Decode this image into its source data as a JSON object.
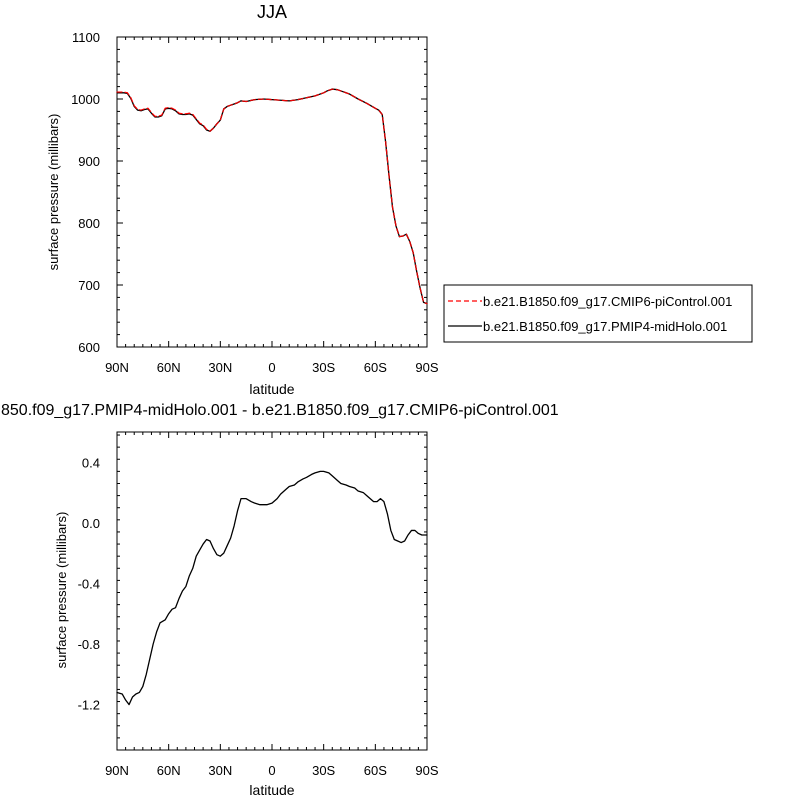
{
  "chart_data": [
    {
      "type": "line",
      "title": "JJA",
      "xlabel": "latitude",
      "ylabel": "surface pressure (millibars)",
      "xlim": [
        90,
        -90
      ],
      "ylim": [
        600,
        1100
      ],
      "x_ticks": [
        90,
        60,
        30,
        0,
        -30,
        -60,
        -90
      ],
      "x_tick_labels": [
        "90N",
        "60N",
        "30N",
        "0",
        "30S",
        "60S",
        "90S"
      ],
      "y_ticks": [
        600,
        700,
        800,
        900,
        1000,
        1100
      ],
      "y_tick_labels": [
        "600",
        "700",
        "800",
        "900",
        "1000",
        "1100"
      ],
      "legend_position": "right",
      "grid": false,
      "series": [
        {
          "name": "b.e21.B1850.f09_g17.CMIP6-piControl.001",
          "color": "#ff0000",
          "dash": "dashed",
          "x": [
            90,
            86,
            84,
            82,
            80,
            78,
            76,
            74,
            72,
            70,
            68,
            66,
            64,
            62,
            60,
            58,
            56,
            54,
            52,
            50,
            48,
            46,
            44,
            42,
            40,
            38,
            36,
            34,
            32,
            30,
            28,
            26,
            24,
            22,
            20,
            18,
            15,
            10,
            5,
            0,
            -5,
            -10,
            -15,
            -20,
            -25,
            -30,
            -32,
            -35,
            -38,
            -40,
            -45,
            -50,
            -55,
            -60,
            -62,
            -64,
            -66,
            -68,
            -70,
            -72,
            -74,
            -76,
            -78,
            -80,
            -82,
            -84,
            -86,
            -88,
            -90
          ],
          "values": [
            1011,
            1011,
            1010,
            1002,
            989,
            983,
            982,
            984,
            985,
            978,
            972,
            972,
            974,
            985,
            986,
            985,
            982,
            977,
            976,
            976,
            977,
            975,
            968,
            961,
            958,
            951,
            948,
            953,
            960,
            966,
            984,
            988,
            990,
            992,
            994,
            997,
            996,
            999,
            1000,
            999,
            998,
            997,
            999,
            1002,
            1005,
            1010,
            1013,
            1016,
            1015,
            1013,
            1008,
            1000,
            993,
            985,
            982,
            975,
            930,
            875,
            825,
            795,
            778,
            779,
            782,
            770,
            752,
            722,
            695,
            672,
            670
          ]
        },
        {
          "name": "b.e21.B1850.f09_g17.PMIP4-midHolo.001",
          "color": "#000000",
          "dash": "solid",
          "x": [
            90,
            86,
            84,
            82,
            80,
            78,
            76,
            74,
            72,
            70,
            68,
            66,
            64,
            62,
            60,
            58,
            56,
            54,
            52,
            50,
            48,
            46,
            44,
            42,
            40,
            38,
            36,
            34,
            32,
            30,
            28,
            26,
            24,
            22,
            20,
            18,
            15,
            10,
            5,
            0,
            -5,
            -10,
            -15,
            -20,
            -25,
            -30,
            -32,
            -35,
            -38,
            -40,
            -45,
            -50,
            -55,
            -60,
            -62,
            -64,
            -66,
            -68,
            -70,
            -72,
            -74,
            -76,
            -78,
            -80,
            -82,
            -84,
            -86,
            -88,
            -90
          ],
          "values": [
            1010,
            1010,
            1009,
            1001,
            988,
            982,
            981,
            983,
            984,
            977,
            971,
            971,
            973,
            984,
            985,
            984,
            981,
            976,
            975,
            975,
            976,
            974,
            967,
            960,
            957,
            950,
            948,
            953,
            960,
            966,
            984,
            988,
            990,
            992,
            994,
            997,
            996,
            999,
            1000,
            999,
            998,
            997,
            999,
            1002,
            1005,
            1010,
            1013,
            1016,
            1015,
            1013,
            1008,
            1000,
            993,
            985,
            982,
            975,
            930,
            875,
            825,
            795,
            778,
            779,
            782,
            770,
            752,
            722,
            695,
            672,
            670
          ]
        }
      ]
    },
    {
      "type": "line",
      "title": "850.f09_g17.PMIP4-midHolo.001 - b.e21.B1850.f09_g17.CMIP6-piControl.001",
      "xlabel": "latitude",
      "ylabel": "surface pressure (millibars)",
      "xlim": [
        90,
        -90
      ],
      "ylim": [
        -1.5,
        0.6
      ],
      "x_ticks": [
        90,
        60,
        30,
        0,
        -30,
        -60,
        -90
      ],
      "x_tick_labels": [
        "90N",
        "60N",
        "30N",
        "0",
        "30S",
        "60S",
        "90S"
      ],
      "y_ticks": [
        -1.2,
        -0.8,
        -0.4,
        0.0,
        0.4
      ],
      "y_tick_labels": [
        "-1.2",
        "-0.8",
        "-0.4",
        "0.0",
        "0.4"
      ],
      "grid": false,
      "series": [
        {
          "color": "#000000",
          "dash": "solid",
          "x": [
            90,
            87,
            85,
            83,
            81,
            79,
            77,
            75,
            73,
            71,
            69,
            67,
            65,
            62,
            60,
            58,
            56,
            54,
            52,
            50,
            48,
            46,
            44,
            42,
            40,
            38,
            36,
            34,
            32,
            30,
            28,
            26,
            24,
            22,
            20,
            18,
            15,
            12,
            10,
            7,
            5,
            3,
            0,
            -3,
            -5,
            -8,
            -10,
            -13,
            -15,
            -18,
            -20,
            -23,
            -25,
            -28,
            -30,
            -33,
            -35,
            -38,
            -40,
            -43,
            -45,
            -48,
            -50,
            -53,
            -55,
            -57,
            -59,
            -61,
            -63,
            -65,
            -67,
            -69,
            -71,
            -73,
            -75,
            -77,
            -79,
            -81,
            -83,
            -85,
            -87,
            -90
          ],
          "values": [
            -1.12,
            -1.13,
            -1.17,
            -1.2,
            -1.15,
            -1.13,
            -1.12,
            -1.08,
            -1.0,
            -0.9,
            -0.8,
            -0.72,
            -0.66,
            -0.64,
            -0.6,
            -0.57,
            -0.56,
            -0.5,
            -0.45,
            -0.42,
            -0.35,
            -0.3,
            -0.22,
            -0.18,
            -0.14,
            -0.11,
            -0.12,
            -0.17,
            -0.21,
            -0.22,
            -0.2,
            -0.15,
            -0.1,
            -0.02,
            0.08,
            0.16,
            0.16,
            0.14,
            0.13,
            0.12,
            0.12,
            0.12,
            0.13,
            0.16,
            0.19,
            0.22,
            0.24,
            0.25,
            0.27,
            0.29,
            0.3,
            0.32,
            0.33,
            0.34,
            0.34,
            0.33,
            0.31,
            0.28,
            0.26,
            0.25,
            0.24,
            0.23,
            0.21,
            0.2,
            0.18,
            0.16,
            0.14,
            0.14,
            0.16,
            0.14,
            0.06,
            -0.05,
            -0.11,
            -0.12,
            -0.13,
            -0.12,
            -0.08,
            -0.05,
            -0.05,
            -0.07,
            -0.08,
            -0.08
          ]
        }
      ]
    }
  ]
}
